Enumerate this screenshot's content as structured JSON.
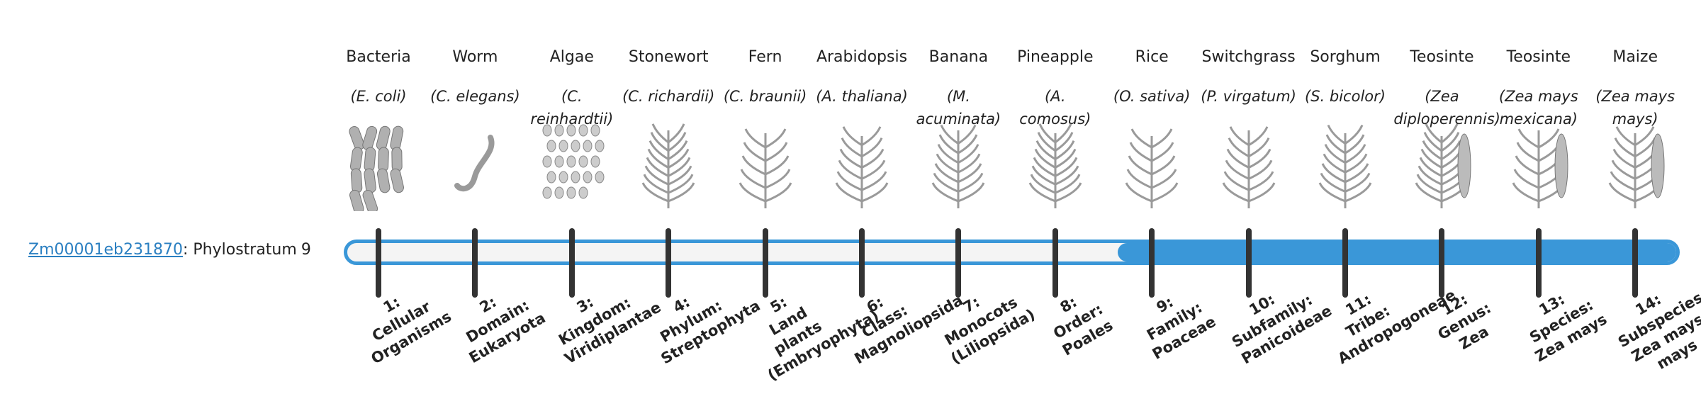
{
  "gene": {
    "id": "Zm00001eb231870",
    "label": ": Phylostratum",
    "stratum": 9
  },
  "organisms": [
    {
      "name": "Bacteria",
      "species": "(E. coli)",
      "num": "1:",
      "stratum": "Cellular Organisms"
    },
    {
      "name": "Worm",
      "species": "(C. elegans)",
      "num": "2:",
      "stratum": "Domain: Eukaryota"
    },
    {
      "name": "Algae",
      "species": "(C. reinhardtii)",
      "num": "3:",
      "stratum": "Kingdom: Viridiplantae"
    },
    {
      "name": "Stonewort",
      "species": "(C. richardii)",
      "num": "4:",
      "stratum": "Phylum: Streptophyta"
    },
    {
      "name": "Fern",
      "species": "(C. braunii)",
      "num": "5:",
      "stratum": "Land plants (Embryophyta)"
    },
    {
      "name": "Arabidopsis",
      "species": "(A. thaliana)",
      "num": "6:",
      "stratum": "Class: Magnoliopsida"
    },
    {
      "name": "Banana",
      "species": "(M. acuminata)",
      "num": "7:",
      "stratum": "Monocots (Liliopsida)"
    },
    {
      "name": "Pineapple",
      "species": "(A. comosus)",
      "num": "8:",
      "stratum": "Order: Poales"
    },
    {
      "name": "Rice",
      "species": "(O. sativa)",
      "num": "9:",
      "stratum": "Family: Poaceae"
    },
    {
      "name": "Switchgrass",
      "species": "(P. virgatum)",
      "num": "10:",
      "stratum": "Subfamily: Panicoideae"
    },
    {
      "name": "Sorghum",
      "species": "(S. bicolor)",
      "num": "11:",
      "stratum": "Tribe: Andropogoneae"
    },
    {
      "name": "Teosinte",
      "species": "(Zea diploperennis)",
      "num": "12:",
      "stratum": "Genus: Zea"
    },
    {
      "name": "Teosinte",
      "species": "(Zea mays mexicana)",
      "num": "13:",
      "stratum": "Species: Zea mays"
    },
    {
      "name": "Maize",
      "species": "(Zea mays mays)",
      "num": "14:",
      "stratum": "Subspecies: Zea mays mays"
    }
  ]
}
